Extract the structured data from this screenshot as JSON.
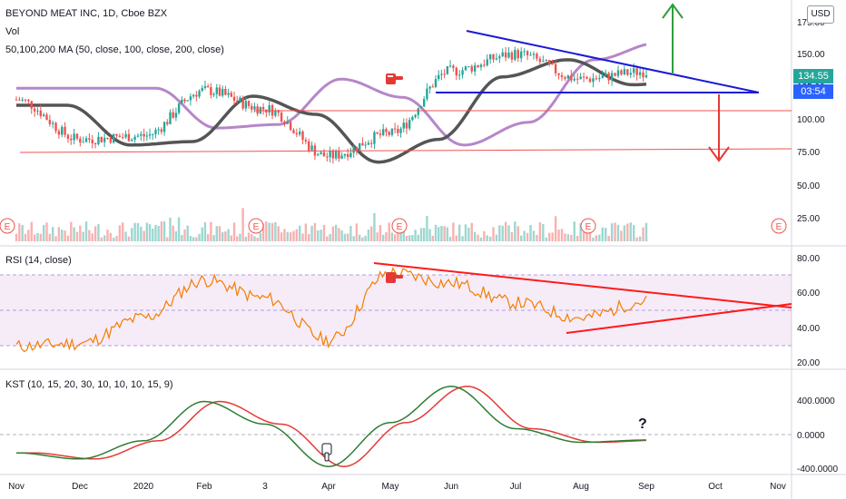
{
  "header": {
    "symbol": "BEYOND MEAT INC, 1D, Cboe BZX",
    "volume_label": "Vol",
    "ma_label": "50,100,200 MA (50, close, 100, close, 200, close)",
    "rsi_label": "RSI (14, close)",
    "kst_label": "KST (10, 15, 20, 30, 10, 10, 10, 15, 9)"
  },
  "price_scale": {
    "currency": "USD",
    "ticks": [
      "175.00",
      "150.00",
      "125.00",
      "100.00",
      "75.00",
      "50.00",
      "25.00"
    ],
    "last_price": "134.55",
    "countdown": "03:54"
  },
  "rsi_scale": {
    "ticks": [
      "80.00",
      "60.00",
      "40.00",
      "20.00"
    ]
  },
  "kst_scale": {
    "ticks": [
      "400.0000",
      "0.0000",
      "-400.0000"
    ]
  },
  "time_axis": {
    "labels": [
      "Nov",
      "Dec",
      "2020",
      "Feb",
      "3",
      "Apr",
      "May",
      "Jun",
      "Jul",
      "Aug",
      "Sep",
      "Oct",
      "Nov"
    ]
  },
  "earnings_marker": "E",
  "annotations": {
    "question": "?"
  },
  "colors": {
    "up": "#26a69a",
    "down": "#ef5350",
    "ma50": "#555555",
    "ma200": "#9c5fb5",
    "trendline_blue": "#1a1ad6",
    "trendline_red": "#ff1a1a",
    "rsi": "#f57c00",
    "kst": "#2e7d32",
    "kst_signal": "#e53935",
    "last_price_bg": "#26a69a",
    "countdown_bg": "#2962ff"
  },
  "chart_data": [
    {
      "type": "line",
      "title": "BEYOND MEAT INC, 1D, Cboe BZX",
      "x": [
        "Nov",
        "Dec",
        "2020",
        "Feb",
        "Mar",
        "Apr",
        "May",
        "Jun",
        "Jul",
        "Aug",
        "Sep"
      ],
      "series": [
        {
          "name": "close",
          "values": [
            110,
            75,
            78,
            118,
            102,
            60,
            80,
            135,
            150,
            128,
            134.55
          ]
        }
      ],
      "ylim": [
        30,
        180
      ]
    },
    {
      "type": "line",
      "title": "RSI (14, close)",
      "x": [
        "Nov",
        "Dec",
        "2020",
        "Feb",
        "Mar",
        "Apr",
        "May",
        "Jun",
        "Jul",
        "Aug",
        "Sep"
      ],
      "series": [
        {
          "name": "RSI",
          "values": [
            26,
            28,
            45,
            70,
            58,
            30,
            75,
            68,
            55,
            45,
            56
          ]
        }
      ],
      "ylim": [
        15,
        85
      ]
    },
    {
      "type": "line",
      "title": "KST (10, 15, 20, 30, 10, 10, 10, 15, 9)",
      "x": [
        "Nov",
        "Dec",
        "2020",
        "Feb",
        "Mar",
        "Apr",
        "May",
        "Jun",
        "Jul",
        "Aug",
        "Sep"
      ],
      "series": [
        {
          "name": "KST",
          "values": [
            -200,
            -280,
            -40,
            480,
            180,
            -380,
            200,
            680,
            120,
            -60,
            -30
          ]
        }
      ],
      "ylim": [
        -450,
        750
      ]
    }
  ]
}
